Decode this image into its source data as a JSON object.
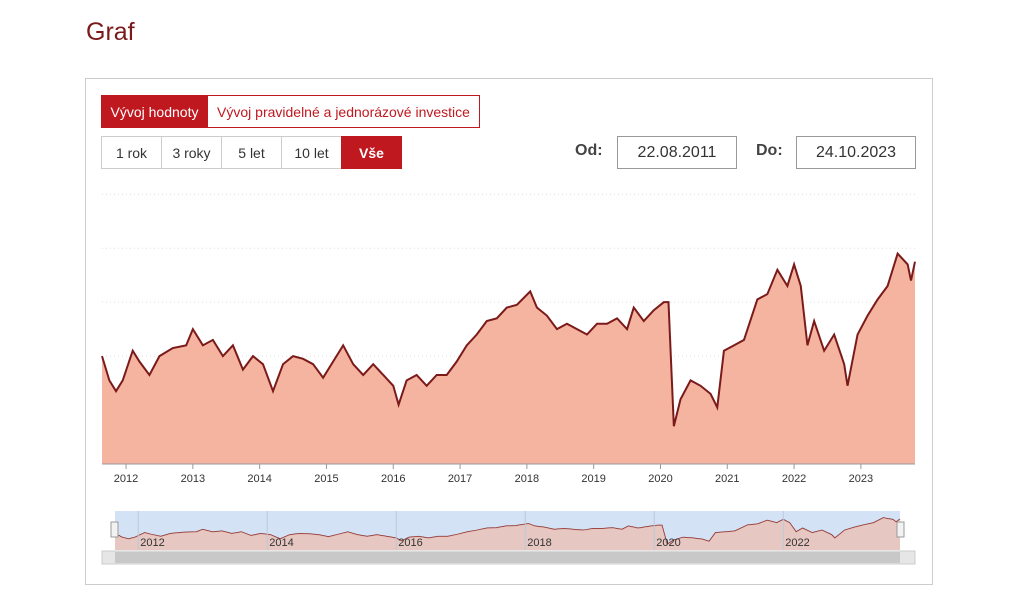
{
  "page": {
    "title": "Graf",
    "tabs": [
      "Vývoj hodnoty",
      "Vývoj pravidelné a jednorázové investice"
    ],
    "ranges": [
      "1 rok",
      "3 roky",
      "5 let",
      "10 let",
      "Vše"
    ],
    "from_label": "Od:",
    "from_value": "22.08.2011",
    "to_label": "Do:",
    "to_value": "24.10.2023"
  },
  "chart_data": {
    "type": "area",
    "color": "#7b1a1a",
    "fill_color": "#f4b4a0",
    "x": [
      2011.64,
      2011.75,
      2011.85,
      2011.95,
      2012.1,
      2012.2,
      2012.35,
      2012.5,
      2012.7,
      2012.9,
      2013.0,
      2013.15,
      2013.3,
      2013.45,
      2013.6,
      2013.75,
      2013.9,
      2014.05,
      2014.2,
      2014.35,
      2014.5,
      2014.65,
      2014.8,
      2014.95,
      2015.1,
      2015.25,
      2015.4,
      2015.55,
      2015.7,
      2015.85,
      2016.0,
      2016.08,
      2016.2,
      2016.35,
      2016.5,
      2016.65,
      2016.8,
      2016.95,
      2017.1,
      2017.25,
      2017.4,
      2017.55,
      2017.7,
      2017.85,
      2018.05,
      2018.15,
      2018.3,
      2018.45,
      2018.6,
      2018.75,
      2018.9,
      2019.05,
      2019.2,
      2019.35,
      2019.5,
      2019.6,
      2019.75,
      2019.9,
      2020.05,
      2020.12,
      2020.2,
      2020.3,
      2020.45,
      2020.6,
      2020.75,
      2020.85,
      2020.95,
      2021.1,
      2021.25,
      2021.45,
      2021.6,
      2021.75,
      2021.9,
      2022.0,
      2022.1,
      2022.2,
      2022.3,
      2022.45,
      2022.6,
      2022.75,
      2022.8,
      2022.95,
      2023.1,
      2023.25,
      2023.4,
      2023.55,
      2023.7,
      2023.75,
      2023.81
    ],
    "values": [
      40,
      31,
      27,
      31,
      42,
      38,
      33,
      40,
      43,
      44,
      50,
      44,
      46,
      40,
      44,
      35,
      40,
      37,
      27,
      37,
      40,
      39,
      37,
      32,
      38,
      44,
      37,
      33,
      37,
      33,
      29,
      22,
      31,
      33,
      29,
      33,
      33,
      38,
      44,
      48,
      53,
      54,
      58,
      59,
      64,
      58,
      55,
      50,
      52,
      50,
      48,
      52,
      52,
      54,
      50,
      58,
      53,
      57,
      60,
      60,
      14,
      24,
      31,
      29,
      26,
      21,
      42,
      44,
      46,
      61,
      63,
      72,
      66,
      74,
      66,
      44,
      53,
      42,
      48,
      37,
      29,
      48,
      55,
      61,
      66,
      78,
      74,
      68,
      75
    ],
    "xlim": [
      2011.64,
      2023.81
    ],
    "xticks": [
      2012,
      2013,
      2014,
      2015,
      2016,
      2017,
      2018,
      2019,
      2020,
      2021,
      2022,
      2023
    ],
    "ylim": [
      0,
      109
    ],
    "yticks": [
      0,
      20,
      40,
      60,
      80,
      100
    ],
    "grid": true,
    "show_ytick_labels": false,
    "navigator": {
      "xticks": [
        2012,
        2014,
        2016,
        2018,
        2020,
        2022
      ]
    }
  }
}
